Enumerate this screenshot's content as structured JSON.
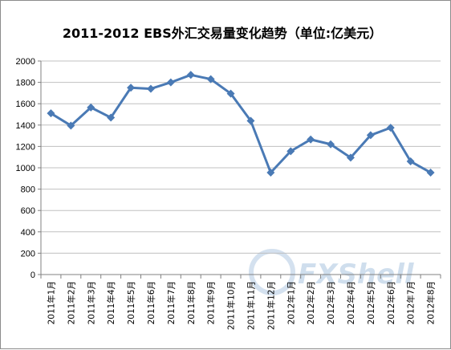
{
  "chart_data": {
    "type": "line",
    "title": "2011-2012 EBS外汇交易量变化趋势（单位:亿美元）",
    "categories": [
      "2011年1月",
      "2011年2月",
      "2011年3月",
      "2011年4月",
      "2011年5月",
      "2011年6月",
      "2011年7月",
      "2011年8月",
      "2011年9月",
      "2011年10月",
      "2011年11月",
      "2011年12月",
      "2012年1月",
      "2012年2月",
      "2012年3月",
      "2012年4月",
      "2012年5月",
      "2012年6月",
      "2012年7月",
      "2012年8月"
    ],
    "series": [
      {
        "values": [
          1510,
          1395,
          1565,
          1470,
          1750,
          1740,
          1800,
          1870,
          1830,
          1695,
          1440,
          955,
          1155,
          1265,
          1220,
          1095,
          1305,
          1375,
          1060,
          955
        ]
      }
    ],
    "y_ticks": [
      "0",
      "200",
      "400",
      "600",
      "800",
      "1000",
      "1200",
      "1400",
      "1600",
      "1800",
      "2000"
    ],
    "ylim": [
      0,
      2000
    ],
    "grid": true,
    "legend": "none",
    "line_color": "#4a7ab5",
    "marker": "diamond"
  },
  "watermark": {
    "text": "FXShell",
    "color": "#a9c4e0"
  }
}
